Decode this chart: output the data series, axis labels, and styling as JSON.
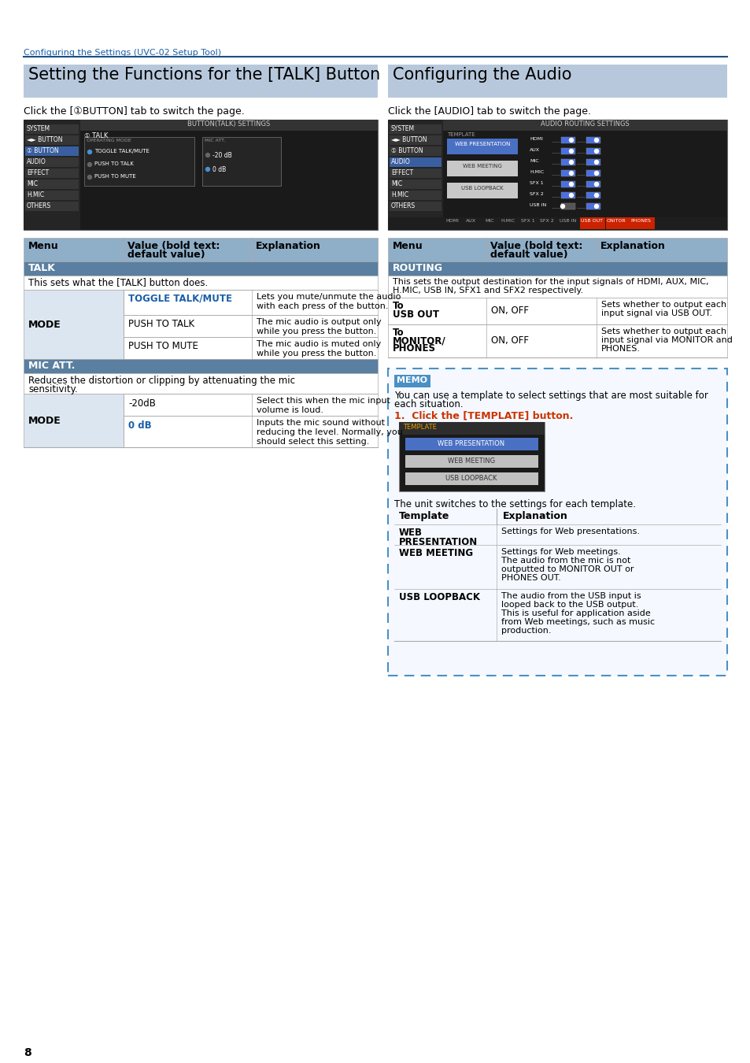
{
  "page_bg": "#ffffff",
  "header_line_color": "#1a4f82",
  "header_text": "Configuring the Settings (UVC-02 Setup Tool)",
  "header_text_color": "#1a5fa8",
  "page_number": "8",
  "left_section_title": "Setting the Functions for the [TALK] Button",
  "left_section_title_bg": "#b8c8dc",
  "right_section_title": "Configuring the Audio",
  "right_section_title_bg": "#b8c8dc",
  "right_desc": "Click the [AUDIO] tab to switch the page.",
  "table_header_bg": "#8faec8",
  "table_row_bg1": "#dce6f0",
  "table_row_bg2": "#ffffff",
  "table_section_bg": "#5a7fa0",
  "table_border": "#aaaaaa",
  "bold_blue": "#1a5fa8",
  "text_color": "#000000",
  "memo_border": "#4a90c4",
  "memo_bg": "#f5f9ff",
  "memo_label_bg": "#4a90c4",
  "memo_numbered_color": "#cc3300",
  "screenshot_bg": "#1a1a1a",
  "ss_sidebar_bg": "#252525",
  "ss_highlight_bg": "#3a5fa0",
  "ss_titlebar_bg": "#2d2d2d"
}
